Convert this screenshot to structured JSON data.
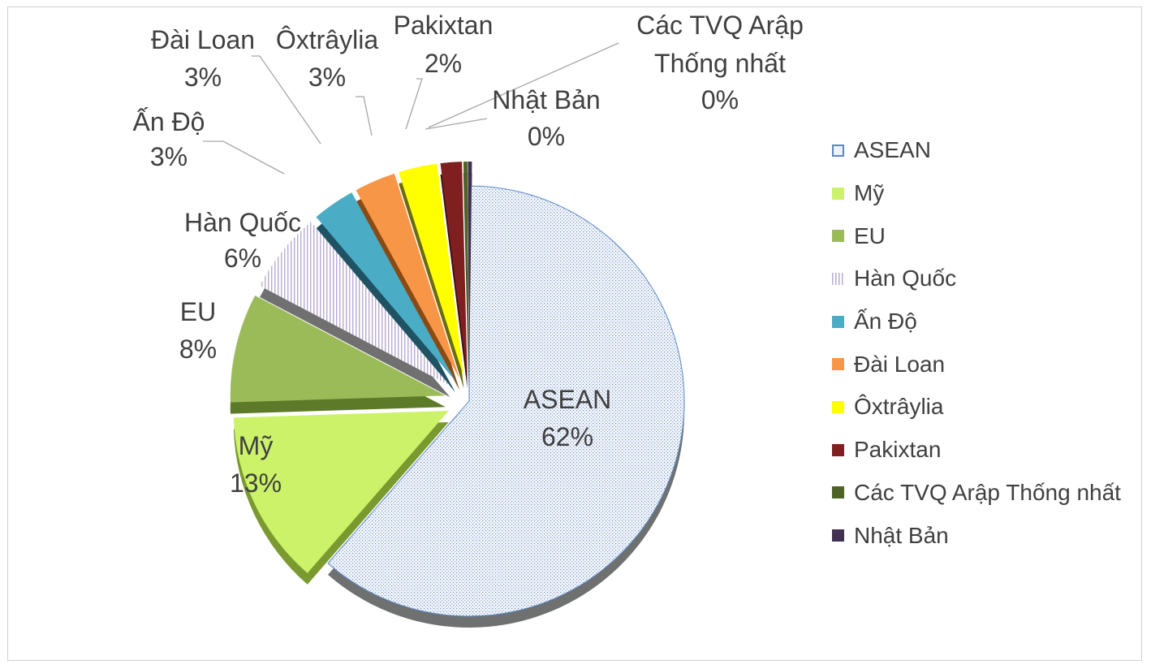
{
  "chart_data": {
    "type": "pie",
    "title": "",
    "categories": [
      "ASEAN",
      "Mỹ",
      "EU",
      "Hàn Quốc",
      "Ấn Độ",
      "Đài Loan",
      "Ôxtrâylia",
      "Pakixtan",
      "Các TVQ Arập Thống nhất",
      "Nhật Bản"
    ],
    "values": [
      62,
      13,
      8,
      6,
      3,
      3,
      3,
      2,
      0,
      0
    ],
    "data_labels": [
      {
        "name": [
          "ASEAN"
        ],
        "value": "62%"
      },
      {
        "name": [
          "Mỹ"
        ],
        "value": "13%"
      },
      {
        "name": [
          "EU"
        ],
        "value": "8%"
      },
      {
        "name": [
          "Hàn Quốc"
        ],
        "value": "6%"
      },
      {
        "name": [
          "Ấn Độ"
        ],
        "value": "3%"
      },
      {
        "name": [
          "Đài Loan"
        ],
        "value": "3%"
      },
      {
        "name": [
          "Ôxtrâylia"
        ],
        "value": "3%"
      },
      {
        "name": [
          "Pakixtan"
        ],
        "value": "2%"
      },
      {
        "name": [
          "Các TVQ Arập",
          "Thống nhất"
        ],
        "value": "0%"
      },
      {
        "name": [
          "Nhật Bản"
        ],
        "value": "0%"
      }
    ],
    "colors": [
      "#dfe6f2",
      "#ccf26a",
      "#9bbb59",
      "#e6e0ec",
      "#4bacc6",
      "#f79646",
      "#ffff00",
      "#7f1f1f",
      "#4f6228",
      "#403151"
    ],
    "legend_position": "right",
    "style": "3d exploded pie"
  }
}
